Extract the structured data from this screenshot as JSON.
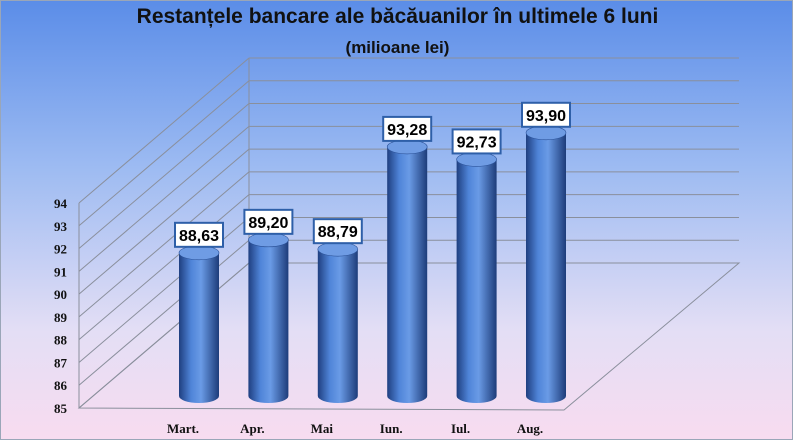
{
  "chart_data": {
    "type": "bar",
    "title": "Restanțele bancare ale băcăuanilor în ultimele 6 luni",
    "subtitle": "(milioane lei)",
    "categories": [
      "Mart.",
      "Apr.",
      "Mai",
      "Iun.",
      "Iul.",
      "Aug."
    ],
    "values": [
      88.63,
      89.2,
      88.79,
      93.28,
      92.73,
      93.9
    ],
    "value_labels": [
      "88,63",
      "89,20",
      "88,79",
      "93,28",
      "92,73",
      "93,90"
    ],
    "y_ticks": [
      "85",
      "86",
      "87",
      "88",
      "89",
      "90",
      "91",
      "92",
      "93",
      "94"
    ],
    "ylim": [
      85,
      94
    ],
    "grid": true,
    "style": "3d-cylinder",
    "bar_color": "#3d6fc0"
  }
}
